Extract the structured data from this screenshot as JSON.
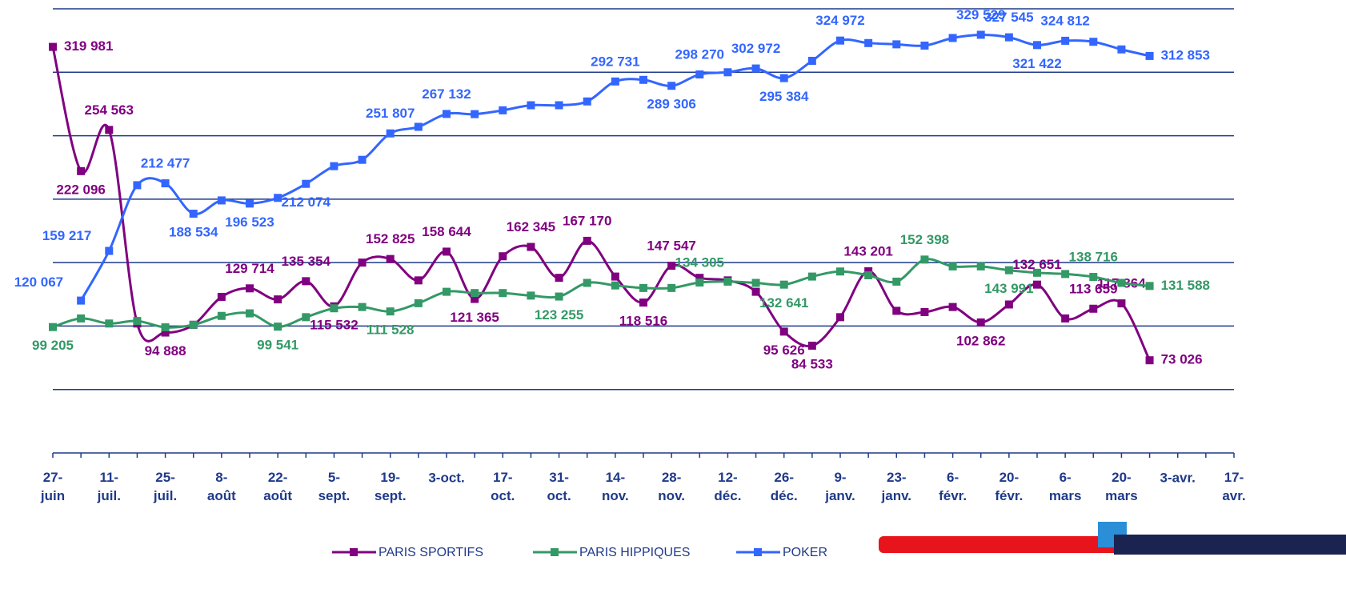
{
  "chart_data": {
    "type": "line",
    "categories": [
      "27-\njuin",
      null,
      "11-\njuil.",
      null,
      "25-\njuil.",
      null,
      "8-\naoût",
      null,
      "22-\naoût",
      null,
      "5-\nsept.",
      null,
      "19-\nsept.",
      null,
      "3-oct.",
      null,
      "17-\noct.",
      null,
      "31-\noct.",
      null,
      "14-\nnov.",
      null,
      "28-\nnov.",
      null,
      "12-\ndéc.",
      null,
      "26-\ndéc.",
      null,
      "9-\njanv.",
      null,
      "23-\njanv.",
      null,
      "6-\nfévr.",
      null,
      "20-\nfévr.",
      null,
      "6-\nmars",
      null,
      "20-\nmars",
      null,
      "3-avr.",
      null,
      "17-\navr."
    ],
    "ylim": [
      0,
      350000
    ],
    "yticks": [
      0,
      50000,
      100000,
      150000,
      200000,
      250000,
      300000,
      350000
    ],
    "grid": true,
    "legend": "bottom",
    "series": [
      {
        "name": "PARIS SPORTIFS",
        "color": "#800080",
        "values": [
          319981,
          222096,
          254563,
          102000,
          94888,
          101000,
          123000,
          129714,
          121000,
          135354,
          115532,
          150000,
          152825,
          136000,
          158644,
          121365,
          155000,
          162345,
          138000,
          167170,
          139000,
          118516,
          147547,
          138000,
          136000,
          127000,
          95626,
          84533,
          107000,
          143201,
          112000,
          111000,
          115000,
          102862,
          117000,
          132651,
          106000,
          113659,
          117864,
          73026,
          null,
          null,
          null
        ],
        "value_labels": [
          "319 981",
          "222 096",
          "254 563",
          null,
          "94 888",
          null,
          null,
          "129 714",
          null,
          "135 354",
          "115 532",
          null,
          "152 825",
          null,
          "158 644",
          "121 365",
          null,
          "162 345",
          null,
          "167 170",
          null,
          "118 516",
          "147 547",
          null,
          null,
          null,
          "95 626",
          "84 533",
          null,
          "143 201",
          null,
          null,
          null,
          "102 862",
          null,
          "132 651",
          null,
          "113 659",
          "117 864",
          "73 026",
          null,
          null,
          null
        ]
      },
      {
        "name": "PARIS HIPPIQUES",
        "color": "#339966",
        "values": [
          99205,
          106000,
          102000,
          104000,
          99000,
          101000,
          108000,
          110000,
          99541,
          107000,
          114000,
          115000,
          111528,
          118000,
          127000,
          126000,
          126000,
          124000,
          123255,
          134000,
          132000,
          130000,
          130000,
          134305,
          135000,
          134000,
          132641,
          139000,
          143000,
          140000,
          135000,
          152398,
          147000,
          147000,
          143991,
          142000,
          141000,
          138716,
          134000,
          131588,
          null,
          null,
          null
        ],
        "value_labels": [
          "99 205",
          null,
          null,
          null,
          null,
          null,
          null,
          null,
          "99 541",
          null,
          null,
          null,
          "111 528",
          null,
          null,
          null,
          null,
          null,
          "123 255",
          null,
          null,
          null,
          null,
          "134 305",
          null,
          null,
          "132 641",
          null,
          null,
          null,
          null,
          "152 398",
          null,
          null,
          "143 991",
          null,
          null,
          "138 716",
          null,
          "131 588",
          null,
          null,
          null
        ]
      },
      {
        "name": "POKER",
        "color": "#3366ff",
        "values": [
          null,
          120067,
          159217,
          211000,
          212477,
          188534,
          199000,
          196523,
          201000,
          212074,
          226000,
          231000,
          251807,
          257000,
          267132,
          267000,
          270000,
          274000,
          274000,
          277000,
          292731,
          294000,
          289306,
          298270,
          300000,
          302972,
          295384,
          309000,
          324972,
          323000,
          322000,
          321000,
          327000,
          329529,
          327545,
          321422,
          324812,
          324000,
          318000,
          312853,
          null,
          null,
          null
        ],
        "value_labels": [
          null,
          "120 067",
          "159 217",
          null,
          "212 477",
          "188 534",
          null,
          "196 523",
          null,
          "212 074",
          null,
          null,
          "251 807",
          null,
          "267 132",
          null,
          null,
          null,
          null,
          null,
          "292 731",
          null,
          "289 306",
          "298 270",
          null,
          "302 972",
          "295 384",
          null,
          "324 972",
          null,
          null,
          null,
          null,
          "329 529",
          "327 545",
          "321 422",
          "324 812",
          null,
          null,
          "312 853",
          null,
          null,
          null
        ]
      }
    ]
  }
}
